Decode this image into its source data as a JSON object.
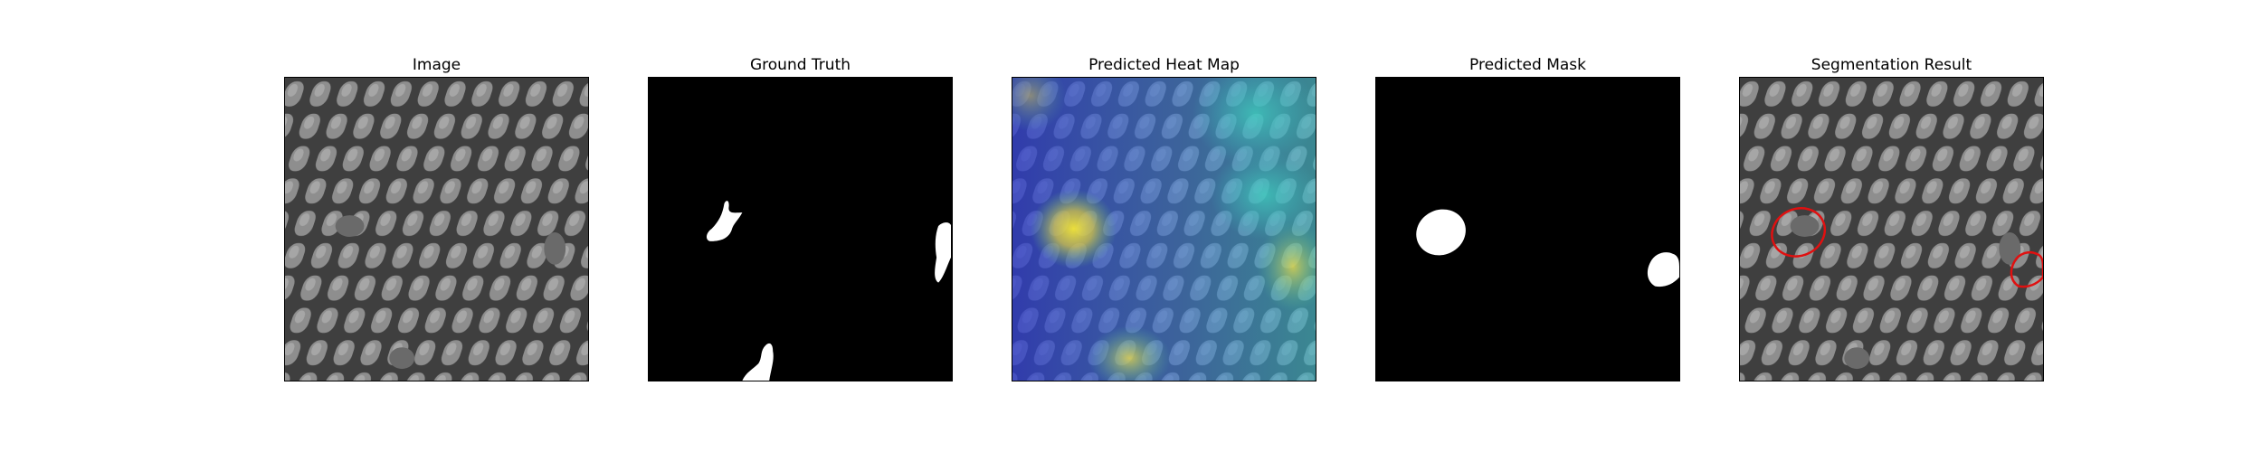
{
  "figure": {
    "panels": [
      {
        "id": "image",
        "title": "Image"
      },
      {
        "id": "ground-truth",
        "title": "Ground Truth"
      },
      {
        "id": "heat-map",
        "title": "Predicted Heat Map"
      },
      {
        "id": "mask",
        "title": "Predicted Mask"
      },
      {
        "id": "segmentation",
        "title": "Segmentation Result"
      }
    ]
  },
  "colors": {
    "mask_background": "#000000",
    "mask_foreground": "#ffffff",
    "contour": "#e01010",
    "grid_dark": "#3c3c3c",
    "grid_cell": "#8c8c8c"
  }
}
